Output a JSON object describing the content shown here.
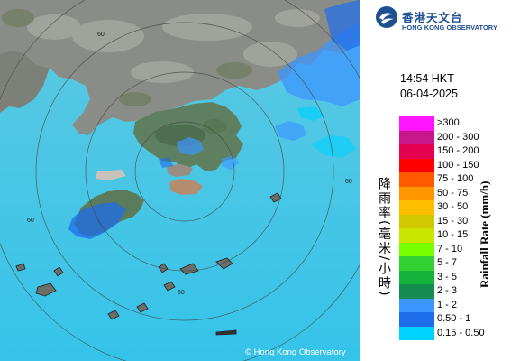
{
  "header": {
    "logo_chinese": "香港天文台",
    "logo_english": "HONG KONG OBSERVATORY",
    "logo_icon": "hko-logo-icon"
  },
  "timestamp": {
    "time": "14:54 HKT",
    "date": "06-04-2025"
  },
  "legend": {
    "title_chinese": "降雨率(毫米/小時)",
    "title_english": "Rainfall Rate (mm/h)",
    "items": [
      {
        "label": ">300",
        "color": "#ff14ff"
      },
      {
        "label": "200 - 300",
        "color": "#c8168c"
      },
      {
        "label": "150 - 200",
        "color": "#e60050"
      },
      {
        "label": "100 - 150",
        "color": "#ff0000"
      },
      {
        "label": "75 - 100",
        "color": "#ff5a00"
      },
      {
        "label": "50 - 75",
        "color": "#ff9600"
      },
      {
        "label": "30 - 50",
        "color": "#ffbe00"
      },
      {
        "label": "15 - 30",
        "color": "#d2c800"
      },
      {
        "label": "10 - 15",
        "color": "#c8e600"
      },
      {
        "label": "7 - 10",
        "color": "#78ff00"
      },
      {
        "label": "5 - 7",
        "color": "#32d232"
      },
      {
        "label": "3 - 5",
        "color": "#14b43c"
      },
      {
        "label": "2 - 3",
        "color": "#148c50"
      },
      {
        "label": "1 - 2",
        "color": "#3c96ff"
      },
      {
        "label": "0.50 - 1",
        "color": "#1e6eeb"
      },
      {
        "label": "0.15 - 0.50",
        "color": "#00d2ff"
      }
    ]
  },
  "map": {
    "range_ring_label": "60",
    "copyright": "© Hong Kong Observatory",
    "sea_color": "#3cc6e6",
    "land_color": "#8c8c8c"
  }
}
